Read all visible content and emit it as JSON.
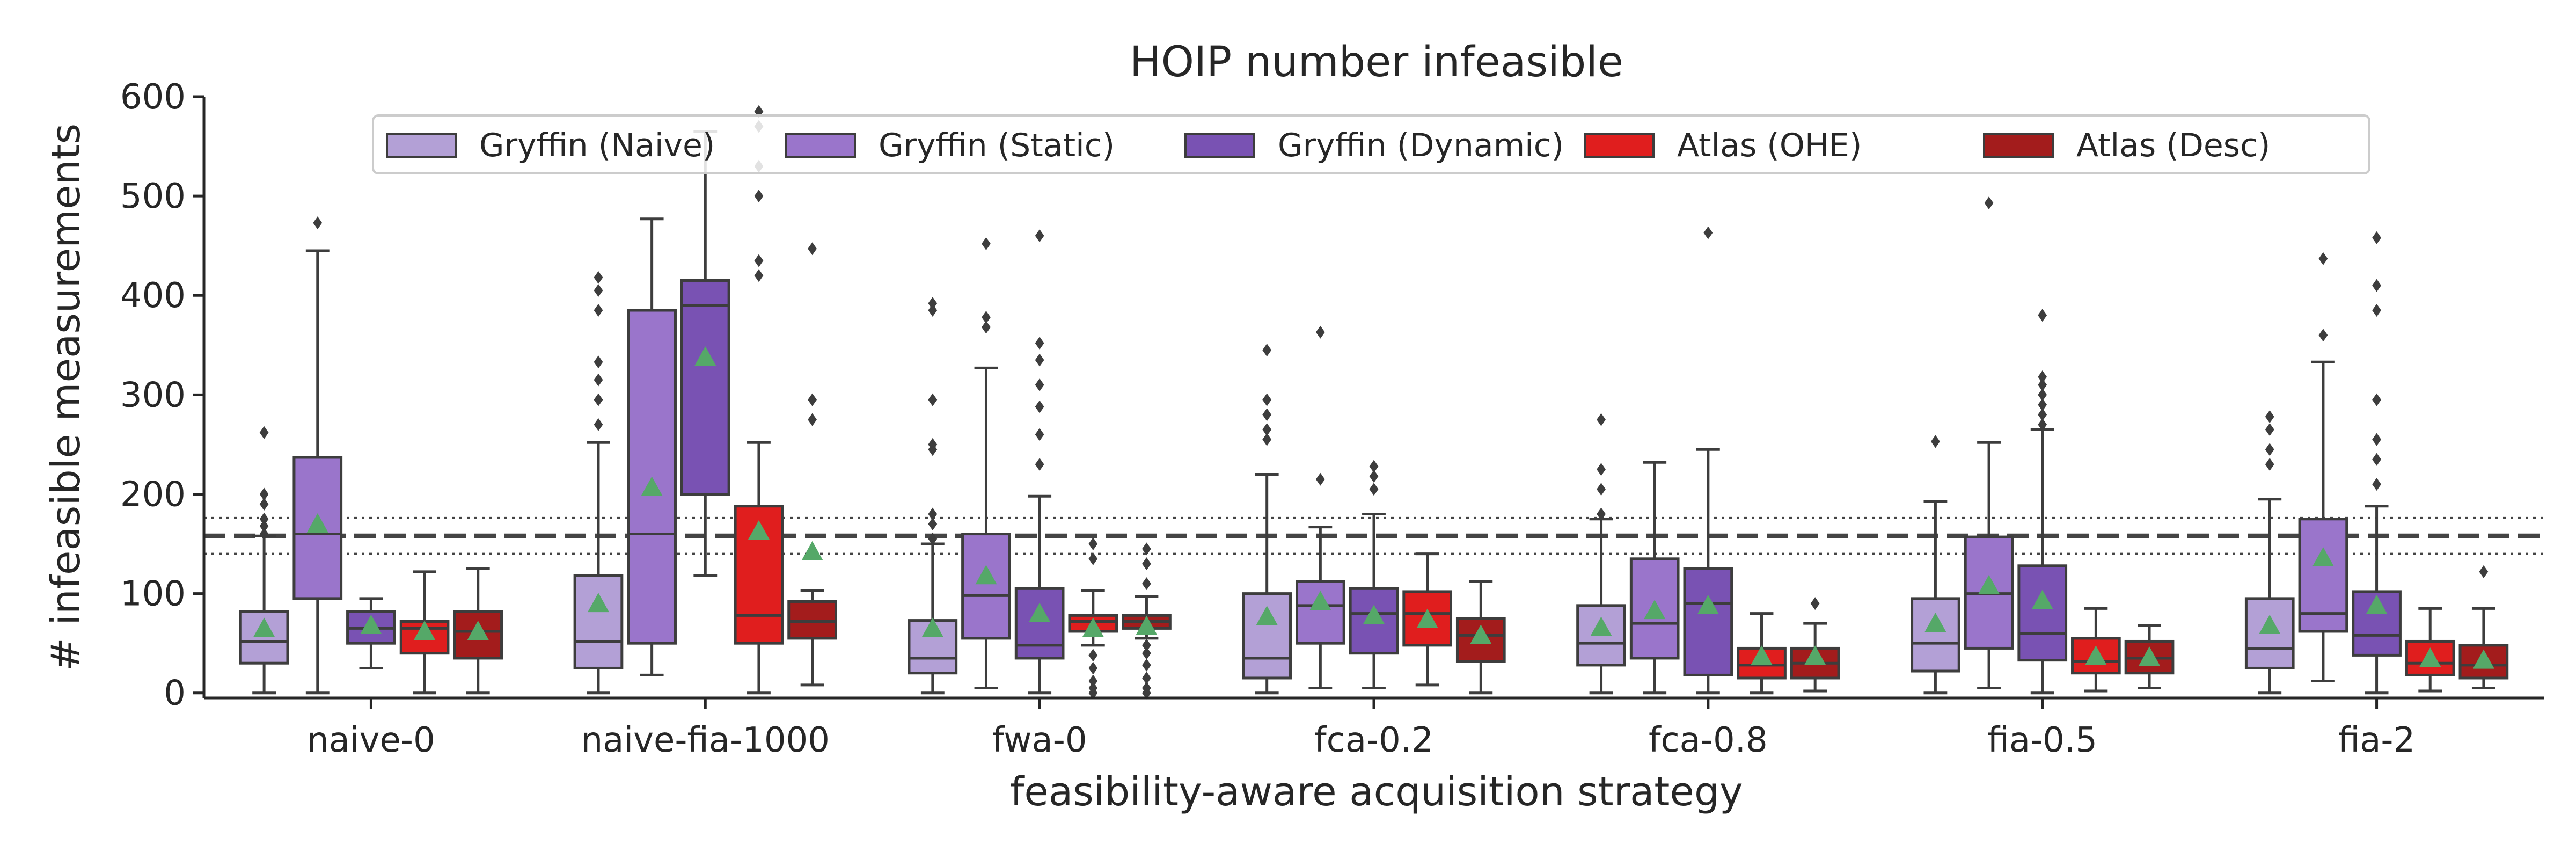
{
  "chart_data": {
    "type": "box",
    "title": "HOIP number infeasible",
    "xlabel": "feasibility-aware acquisition strategy",
    "ylabel": "# infeasible measurements",
    "ylim": [
      -5,
      600
    ],
    "yticks": [
      0,
      100,
      200,
      300,
      400,
      500,
      600
    ],
    "grid": false,
    "legend_position": "top",
    "categories": [
      "naive-0",
      "naive-fia-1000",
      "fwa-0",
      "fca-0.2",
      "fca-0.8",
      "fia-0.5",
      "fia-2"
    ],
    "reference_lines": [
      {
        "style": "dashed",
        "value": 158
      },
      {
        "style": "dotted",
        "value": 176
      },
      {
        "style": "dotted",
        "value": 140
      }
    ],
    "mean_marker_color": "#55a868",
    "series": [
      {
        "name": "Gryffin (Naive)",
        "color": "#b3a0d6",
        "boxes": [
          {
            "whislo": 0,
            "q1": 30,
            "med": 52,
            "q3": 82,
            "whishi": 158,
            "mean": 65,
            "fliers": [
              160,
              168,
              175,
              190,
              200,
              262
            ]
          },
          {
            "whislo": 0,
            "q1": 25,
            "med": 52,
            "q3": 118,
            "whishi": 252,
            "mean": 90,
            "fliers": [
              270,
              295,
              315,
              333,
              385,
              405,
              418
            ]
          },
          {
            "whislo": 0,
            "q1": 20,
            "med": 35,
            "q3": 73,
            "whishi": 150,
            "mean": 65,
            "fliers": [
              155,
              170,
              180,
              245,
              250,
              295,
              385,
              392
            ]
          },
          {
            "whislo": 0,
            "q1": 15,
            "med": 35,
            "q3": 100,
            "whishi": 220,
            "mean": 77,
            "fliers": [
              255,
              265,
              280,
              295,
              345
            ]
          },
          {
            "whislo": 0,
            "q1": 28,
            "med": 50,
            "q3": 88,
            "whishi": 175,
            "mean": 66,
            "fliers": [
              180,
              205,
              225,
              275
            ]
          },
          {
            "whislo": 0,
            "q1": 22,
            "med": 50,
            "q3": 95,
            "whishi": 193,
            "mean": 70,
            "fliers": [
              253
            ]
          },
          {
            "whislo": 0,
            "q1": 25,
            "med": 45,
            "q3": 95,
            "whishi": 195,
            "mean": 68,
            "fliers": [
              230,
              245,
              265,
              278
            ]
          }
        ]
      },
      {
        "name": "Gryffin (Static)",
        "color": "#9a75cb",
        "boxes": [
          {
            "whislo": 0,
            "q1": 95,
            "med": 160,
            "q3": 237,
            "whishi": 445,
            "mean": 170,
            "fliers": [
              473
            ]
          },
          {
            "whislo": 18,
            "q1": 50,
            "med": 160,
            "q3": 385,
            "whishi": 477,
            "mean": 207,
            "fliers": []
          },
          {
            "whislo": 5,
            "q1": 55,
            "med": 98,
            "q3": 160,
            "whishi": 327,
            "mean": 118,
            "fliers": [
              368,
              378,
              452
            ]
          },
          {
            "whislo": 5,
            "q1": 50,
            "med": 88,
            "q3": 112,
            "whishi": 167,
            "mean": 92,
            "fliers": [
              215,
              363
            ]
          },
          {
            "whislo": 0,
            "q1": 35,
            "med": 70,
            "q3": 135,
            "whishi": 232,
            "mean": 83,
            "fliers": []
          },
          {
            "whislo": 5,
            "q1": 45,
            "med": 100,
            "q3": 157,
            "whishi": 252,
            "mean": 108,
            "fliers": [
              493
            ]
          },
          {
            "whislo": 12,
            "q1": 62,
            "med": 80,
            "q3": 175,
            "whishi": 333,
            "mean": 136,
            "fliers": [
              360,
              437
            ]
          }
        ]
      },
      {
        "name": "Gryffin (Dynamic)",
        "color": "#7952b3",
        "boxes": [
          {
            "whislo": 25,
            "q1": 50,
            "med": 65,
            "q3": 82,
            "whishi": 95,
            "mean": 68,
            "fliers": []
          },
          {
            "whislo": 118,
            "q1": 200,
            "med": 390,
            "q3": 415,
            "whishi": 565,
            "mean": 338,
            "fliers": []
          },
          {
            "whislo": 0,
            "q1": 35,
            "med": 48,
            "q3": 105,
            "whishi": 198,
            "mean": 80,
            "fliers": [
              230,
              260,
              288,
              310,
              335,
              352,
              460
            ]
          },
          {
            "whislo": 5,
            "q1": 40,
            "med": 80,
            "q3": 105,
            "whishi": 180,
            "mean": 78,
            "fliers": [
              205,
              218,
              228
            ]
          },
          {
            "whislo": 0,
            "q1": 18,
            "med": 90,
            "q3": 125,
            "whishi": 245,
            "mean": 88,
            "fliers": [
              463
            ]
          },
          {
            "whislo": 0,
            "q1": 33,
            "med": 60,
            "q3": 128,
            "whishi": 265,
            "mean": 93,
            "fliers": [
              270,
              280,
              290,
              300,
              310,
              318,
              380
            ]
          },
          {
            "whislo": 0,
            "q1": 38,
            "med": 58,
            "q3": 102,
            "whishi": 188,
            "mean": 88,
            "fliers": [
              210,
              235,
              255,
              295,
              385,
              410,
              458
            ]
          }
        ]
      },
      {
        "name": "Atlas (OHE)",
        "color": "#e01e1e",
        "boxes": [
          {
            "whislo": 0,
            "q1": 40,
            "med": 65,
            "q3": 72,
            "whishi": 122,
            "mean": 62,
            "fliers": []
          },
          {
            "whislo": 0,
            "q1": 50,
            "med": 78,
            "q3": 188,
            "whishi": 252,
            "mean": 163,
            "fliers": [
              420,
              435,
              500,
              530,
              570,
              585
            ]
          },
          {
            "whislo": 48,
            "q1": 62,
            "med": 72,
            "q3": 78,
            "whishi": 103,
            "mean": 65,
            "fliers": [
              0,
              5,
              12,
              25,
              38,
              135,
              150
            ]
          },
          {
            "whislo": 8,
            "q1": 48,
            "med": 80,
            "q3": 102,
            "whishi": 140,
            "mean": 74,
            "fliers": []
          },
          {
            "whislo": 0,
            "q1": 15,
            "med": 28,
            "q3": 45,
            "whishi": 80,
            "mean": 37,
            "fliers": []
          },
          {
            "whislo": 2,
            "q1": 20,
            "med": 32,
            "q3": 55,
            "whishi": 85,
            "mean": 37,
            "fliers": []
          },
          {
            "whislo": 2,
            "q1": 18,
            "med": 30,
            "q3": 52,
            "whishi": 85,
            "mean": 35,
            "fliers": []
          }
        ]
      },
      {
        "name": "Atlas (Desc)",
        "color": "#a31c1c",
        "boxes": [
          {
            "whislo": 0,
            "q1": 35,
            "med": 62,
            "q3": 82,
            "whishi": 125,
            "mean": 62,
            "fliers": []
          },
          {
            "whislo": 8,
            "q1": 55,
            "med": 72,
            "q3": 92,
            "whishi": 103,
            "mean": 142,
            "fliers": [
              275,
              295,
              447
            ]
          },
          {
            "whislo": 55,
            "q1": 65,
            "med": 72,
            "q3": 78,
            "whishi": 97,
            "mean": 67,
            "fliers": [
              0,
              5,
              15,
              28,
              40,
              48,
              110,
              130,
              145
            ]
          },
          {
            "whislo": 0,
            "q1": 32,
            "med": 58,
            "q3": 75,
            "whishi": 112,
            "mean": 58,
            "fliers": []
          },
          {
            "whislo": 2,
            "q1": 15,
            "med": 30,
            "q3": 45,
            "whishi": 70,
            "mean": 37,
            "fliers": [
              90
            ]
          },
          {
            "whislo": 5,
            "q1": 20,
            "med": 35,
            "q3": 52,
            "whishi": 68,
            "mean": 36,
            "fliers": []
          },
          {
            "whislo": 5,
            "q1": 15,
            "med": 28,
            "q3": 48,
            "whishi": 85,
            "mean": 33,
            "fliers": [
              122
            ]
          }
        ]
      }
    ]
  }
}
